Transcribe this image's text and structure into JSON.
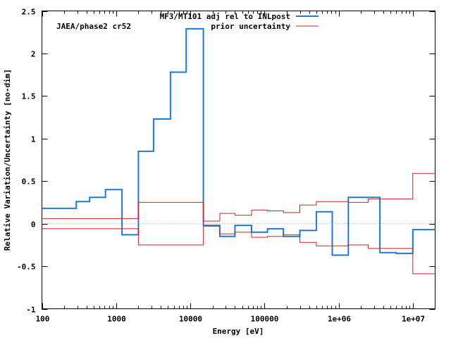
{
  "chart_data": {
    "type": "line",
    "title": "",
    "annotation": "JAEA/phase2 cr52",
    "xlabel": "Energy [eV]",
    "ylabel": "Relative Variation/Uncertainty [no-dim]",
    "xscale": "log",
    "xlim": [
      100,
      20000000
    ],
    "ylim": [
      -1,
      2.5
    ],
    "x_ticks": [
      {
        "value": 100,
        "label": "100"
      },
      {
        "value": 1000,
        "label": "1000"
      },
      {
        "value": 10000,
        "label": "10000"
      },
      {
        "value": 100000,
        "label": "100000"
      },
      {
        "value": 1000000,
        "label": "1e+06"
      },
      {
        "value": 10000000,
        "label": "1e+07"
      }
    ],
    "y_ticks": [
      {
        "value": -1,
        "label": "-1"
      },
      {
        "value": -0.5,
        "label": "-0.5"
      },
      {
        "value": 0,
        "label": "0"
      },
      {
        "value": 0.5,
        "label": "0.5"
      },
      {
        "value": 1,
        "label": "1"
      },
      {
        "value": 1.5,
        "label": "1.5"
      },
      {
        "value": 2,
        "label": "2"
      },
      {
        "value": 2.5,
        "label": "2.5"
      }
    ],
    "grid": false,
    "zero_line": true,
    "legend_position": "top-right",
    "series": [
      {
        "name": "MF3/MT101 adj rel to INLpost",
        "color": "#1e7ad6",
        "style": "step",
        "points": [
          [
            100,
            0.18
          ],
          [
            290,
            0.18
          ],
          [
            290,
            0.26
          ],
          [
            440,
            0.26
          ],
          [
            440,
            0.31
          ],
          [
            720,
            0.31
          ],
          [
            720,
            0.4
          ],
          [
            1200,
            0.4
          ],
          [
            1200,
            -0.13
          ],
          [
            2000,
            -0.13
          ],
          [
            2000,
            0.85
          ],
          [
            3200,
            0.85
          ],
          [
            3200,
            1.23
          ],
          [
            5400,
            1.23
          ],
          [
            5400,
            1.78
          ],
          [
            8800,
            1.78
          ],
          [
            8800,
            2.29
          ],
          [
            15000,
            2.29
          ],
          [
            15000,
            -0.02
          ],
          [
            25000,
            -0.02
          ],
          [
            25000,
            -0.15
          ],
          [
            40000,
            -0.15
          ],
          [
            40000,
            -0.02
          ],
          [
            67000,
            -0.02
          ],
          [
            67000,
            -0.1
          ],
          [
            110000,
            -0.1
          ],
          [
            110000,
            -0.06
          ],
          [
            180000,
            -0.06
          ],
          [
            180000,
            -0.15
          ],
          [
            300000,
            -0.15
          ],
          [
            300000,
            -0.08
          ],
          [
            500000,
            -0.08
          ],
          [
            500000,
            0.14
          ],
          [
            820000,
            0.14
          ],
          [
            820000,
            -0.37
          ],
          [
            1350000,
            -0.37
          ],
          [
            1350000,
            0.31
          ],
          [
            3600000,
            0.31
          ],
          [
            3600000,
            -0.34
          ],
          [
            6000000,
            -0.34
          ],
          [
            6000000,
            -0.35
          ],
          [
            10000000,
            -0.35
          ],
          [
            10000000,
            -0.07
          ],
          [
            20000000,
            -0.07
          ]
        ]
      },
      {
        "name": "prior uncertainty",
        "color": "#cc2222",
        "style": "step",
        "symmetric": true,
        "points": [
          [
            100,
            0.06
          ],
          [
            2000,
            0.06
          ],
          [
            2000,
            0.25
          ],
          [
            15000,
            0.25
          ],
          [
            15000,
            0.03
          ],
          [
            25000,
            0.03
          ],
          [
            25000,
            0.12
          ],
          [
            40000,
            0.12
          ],
          [
            40000,
            0.1
          ],
          [
            67000,
            0.1
          ],
          [
            67000,
            0.16
          ],
          [
            110000,
            0.16
          ],
          [
            110000,
            0.15
          ],
          [
            180000,
            0.15
          ],
          [
            180000,
            0.13
          ],
          [
            300000,
            0.13
          ],
          [
            300000,
            0.22
          ],
          [
            500000,
            0.22
          ],
          [
            500000,
            0.26
          ],
          [
            1350000,
            0.26
          ],
          [
            1350000,
            0.25
          ],
          [
            2500000,
            0.25
          ],
          [
            2500000,
            0.29
          ],
          [
            10000000,
            0.29
          ],
          [
            10000000,
            0.59
          ],
          [
            20000000,
            0.59
          ]
        ]
      }
    ]
  }
}
